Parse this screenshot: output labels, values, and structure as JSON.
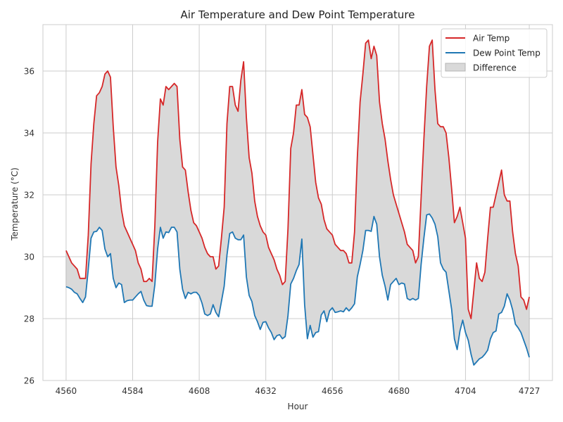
{
  "chart_data": {
    "type": "line",
    "title": "Air Temperature and Dew Point Temperature",
    "xlabel": "Hour",
    "ylabel": "Temperature (°C)",
    "xlim": [
      4551.65,
      4735.35
    ],
    "ylim": [
      26,
      37.5
    ],
    "xticks": [
      4560,
      4584,
      4608,
      4632,
      4656,
      4680,
      4704,
      4727
    ],
    "yticks": [
      26,
      28,
      30,
      32,
      34,
      36
    ],
    "grid": true,
    "legend_position": "top-right",
    "x_start": 4560,
    "series": [
      {
        "name": "Air Temp",
        "color": "#d62728",
        "values": [
          30.2,
          30.0,
          29.8,
          29.7,
          29.6,
          29.3,
          29.3,
          29.3,
          30.7,
          33.0,
          34.3,
          35.2,
          35.3,
          35.5,
          35.9,
          36.0,
          35.8,
          34.2,
          32.9,
          32.3,
          31.5,
          31.0,
          30.8,
          30.6,
          30.4,
          30.2,
          29.8,
          29.6,
          29.2,
          29.2,
          29.3,
          29.2,
          31.0,
          33.7,
          35.1,
          34.9,
          35.5,
          35.4,
          35.5,
          35.6,
          35.5,
          33.8,
          32.9,
          32.8,
          32.1,
          31.5,
          31.1,
          31.0,
          30.8,
          30.6,
          30.3,
          30.1,
          30.0,
          30.0,
          29.6,
          29.7,
          30.6,
          31.6,
          34.3,
          35.5,
          35.5,
          34.9,
          34.7,
          35.7,
          36.3,
          34.5,
          33.2,
          32.7,
          31.8,
          31.3,
          31.0,
          30.8,
          30.7,
          30.3,
          30.1,
          29.9,
          29.6,
          29.4,
          29.1,
          29.2,
          30.9,
          33.5,
          34.0,
          34.9,
          34.9,
          35.4,
          34.6,
          34.5,
          34.2,
          33.3,
          32.4,
          31.9,
          31.7,
          31.2,
          30.9,
          30.8,
          30.7,
          30.4,
          30.3,
          30.2,
          30.2,
          30.1,
          29.8,
          29.8,
          30.8,
          33.2,
          35.0,
          35.9,
          36.9,
          37.0,
          36.4,
          36.8,
          36.5,
          35.0,
          34.3,
          33.8,
          33.1,
          32.5,
          32.0,
          31.7,
          31.4,
          31.1,
          30.8,
          30.4,
          30.3,
          30.2,
          29.8,
          30.0,
          31.9,
          33.8,
          35.5,
          36.8,
          37.0,
          35.4,
          34.3,
          34.2,
          34.2,
          34.0,
          33.2,
          32.2,
          31.1,
          31.3,
          31.6,
          31.1,
          30.6,
          28.3,
          28.0,
          28.9,
          29.8,
          29.3,
          29.2,
          29.5,
          30.6,
          31.6,
          31.6,
          32.0,
          32.4,
          32.8,
          32.0,
          31.8,
          31.8,
          30.8,
          30.1,
          29.7,
          28.7,
          28.6,
          28.3,
          28.7
        ]
      },
      {
        "name": "Dew Point Temp",
        "color": "#1f77b4",
        "values": [
          29.03,
          29.0,
          28.95,
          28.85,
          28.8,
          28.65,
          28.52,
          28.7,
          29.6,
          30.6,
          30.8,
          30.82,
          30.95,
          30.85,
          30.25,
          30.0,
          30.1,
          29.3,
          29.0,
          29.15,
          29.1,
          28.52,
          28.58,
          28.6,
          28.6,
          28.7,
          28.8,
          28.88,
          28.6,
          28.42,
          28.4,
          28.4,
          29.1,
          30.25,
          30.95,
          30.6,
          30.8,
          30.78,
          30.95,
          30.95,
          30.8,
          29.6,
          28.95,
          28.65,
          28.85,
          28.8,
          28.85,
          28.85,
          28.75,
          28.5,
          28.15,
          28.1,
          28.15,
          28.45,
          28.2,
          28.06,
          28.55,
          29.05,
          30.05,
          30.75,
          30.8,
          30.6,
          30.55,
          30.55,
          30.7,
          29.35,
          28.75,
          28.55,
          28.1,
          27.9,
          27.65,
          27.88,
          27.9,
          27.7,
          27.55,
          27.32,
          27.45,
          27.48,
          27.35,
          27.42,
          28.1,
          29.12,
          29.3,
          29.55,
          29.75,
          30.57,
          28.45,
          27.35,
          27.78,
          27.4,
          27.55,
          27.58,
          28.12,
          28.25,
          27.9,
          28.25,
          28.35,
          28.2,
          28.22,
          28.25,
          28.22,
          28.35,
          28.25,
          28.35,
          28.48,
          29.35,
          29.75,
          30.2,
          30.85,
          30.85,
          30.82,
          31.3,
          31.05,
          30.0,
          29.4,
          29.05,
          28.6,
          29.1,
          29.2,
          29.3,
          29.1,
          29.15,
          29.12,
          28.65,
          28.6,
          28.65,
          28.6,
          28.65,
          29.75,
          30.6,
          31.35,
          31.38,
          31.25,
          31.05,
          30.65,
          29.8,
          29.6,
          29.5,
          28.9,
          28.3,
          27.35,
          27.0,
          27.6,
          27.95,
          27.55,
          27.3,
          26.85,
          26.5,
          26.6,
          26.7,
          26.75,
          26.85,
          26.98,
          27.35,
          27.55,
          27.6,
          28.15,
          28.2,
          28.4,
          28.8,
          28.6,
          28.28,
          27.82,
          27.7,
          27.55,
          27.3,
          27.05,
          26.75,
          26.9,
          26.8
        ]
      }
    ],
    "fill": {
      "name": "Difference",
      "between": [
        "Air Temp",
        "Dew Point Temp"
      ],
      "color": "#d9d9d9",
      "edge_color": "#b5b5b5"
    }
  }
}
